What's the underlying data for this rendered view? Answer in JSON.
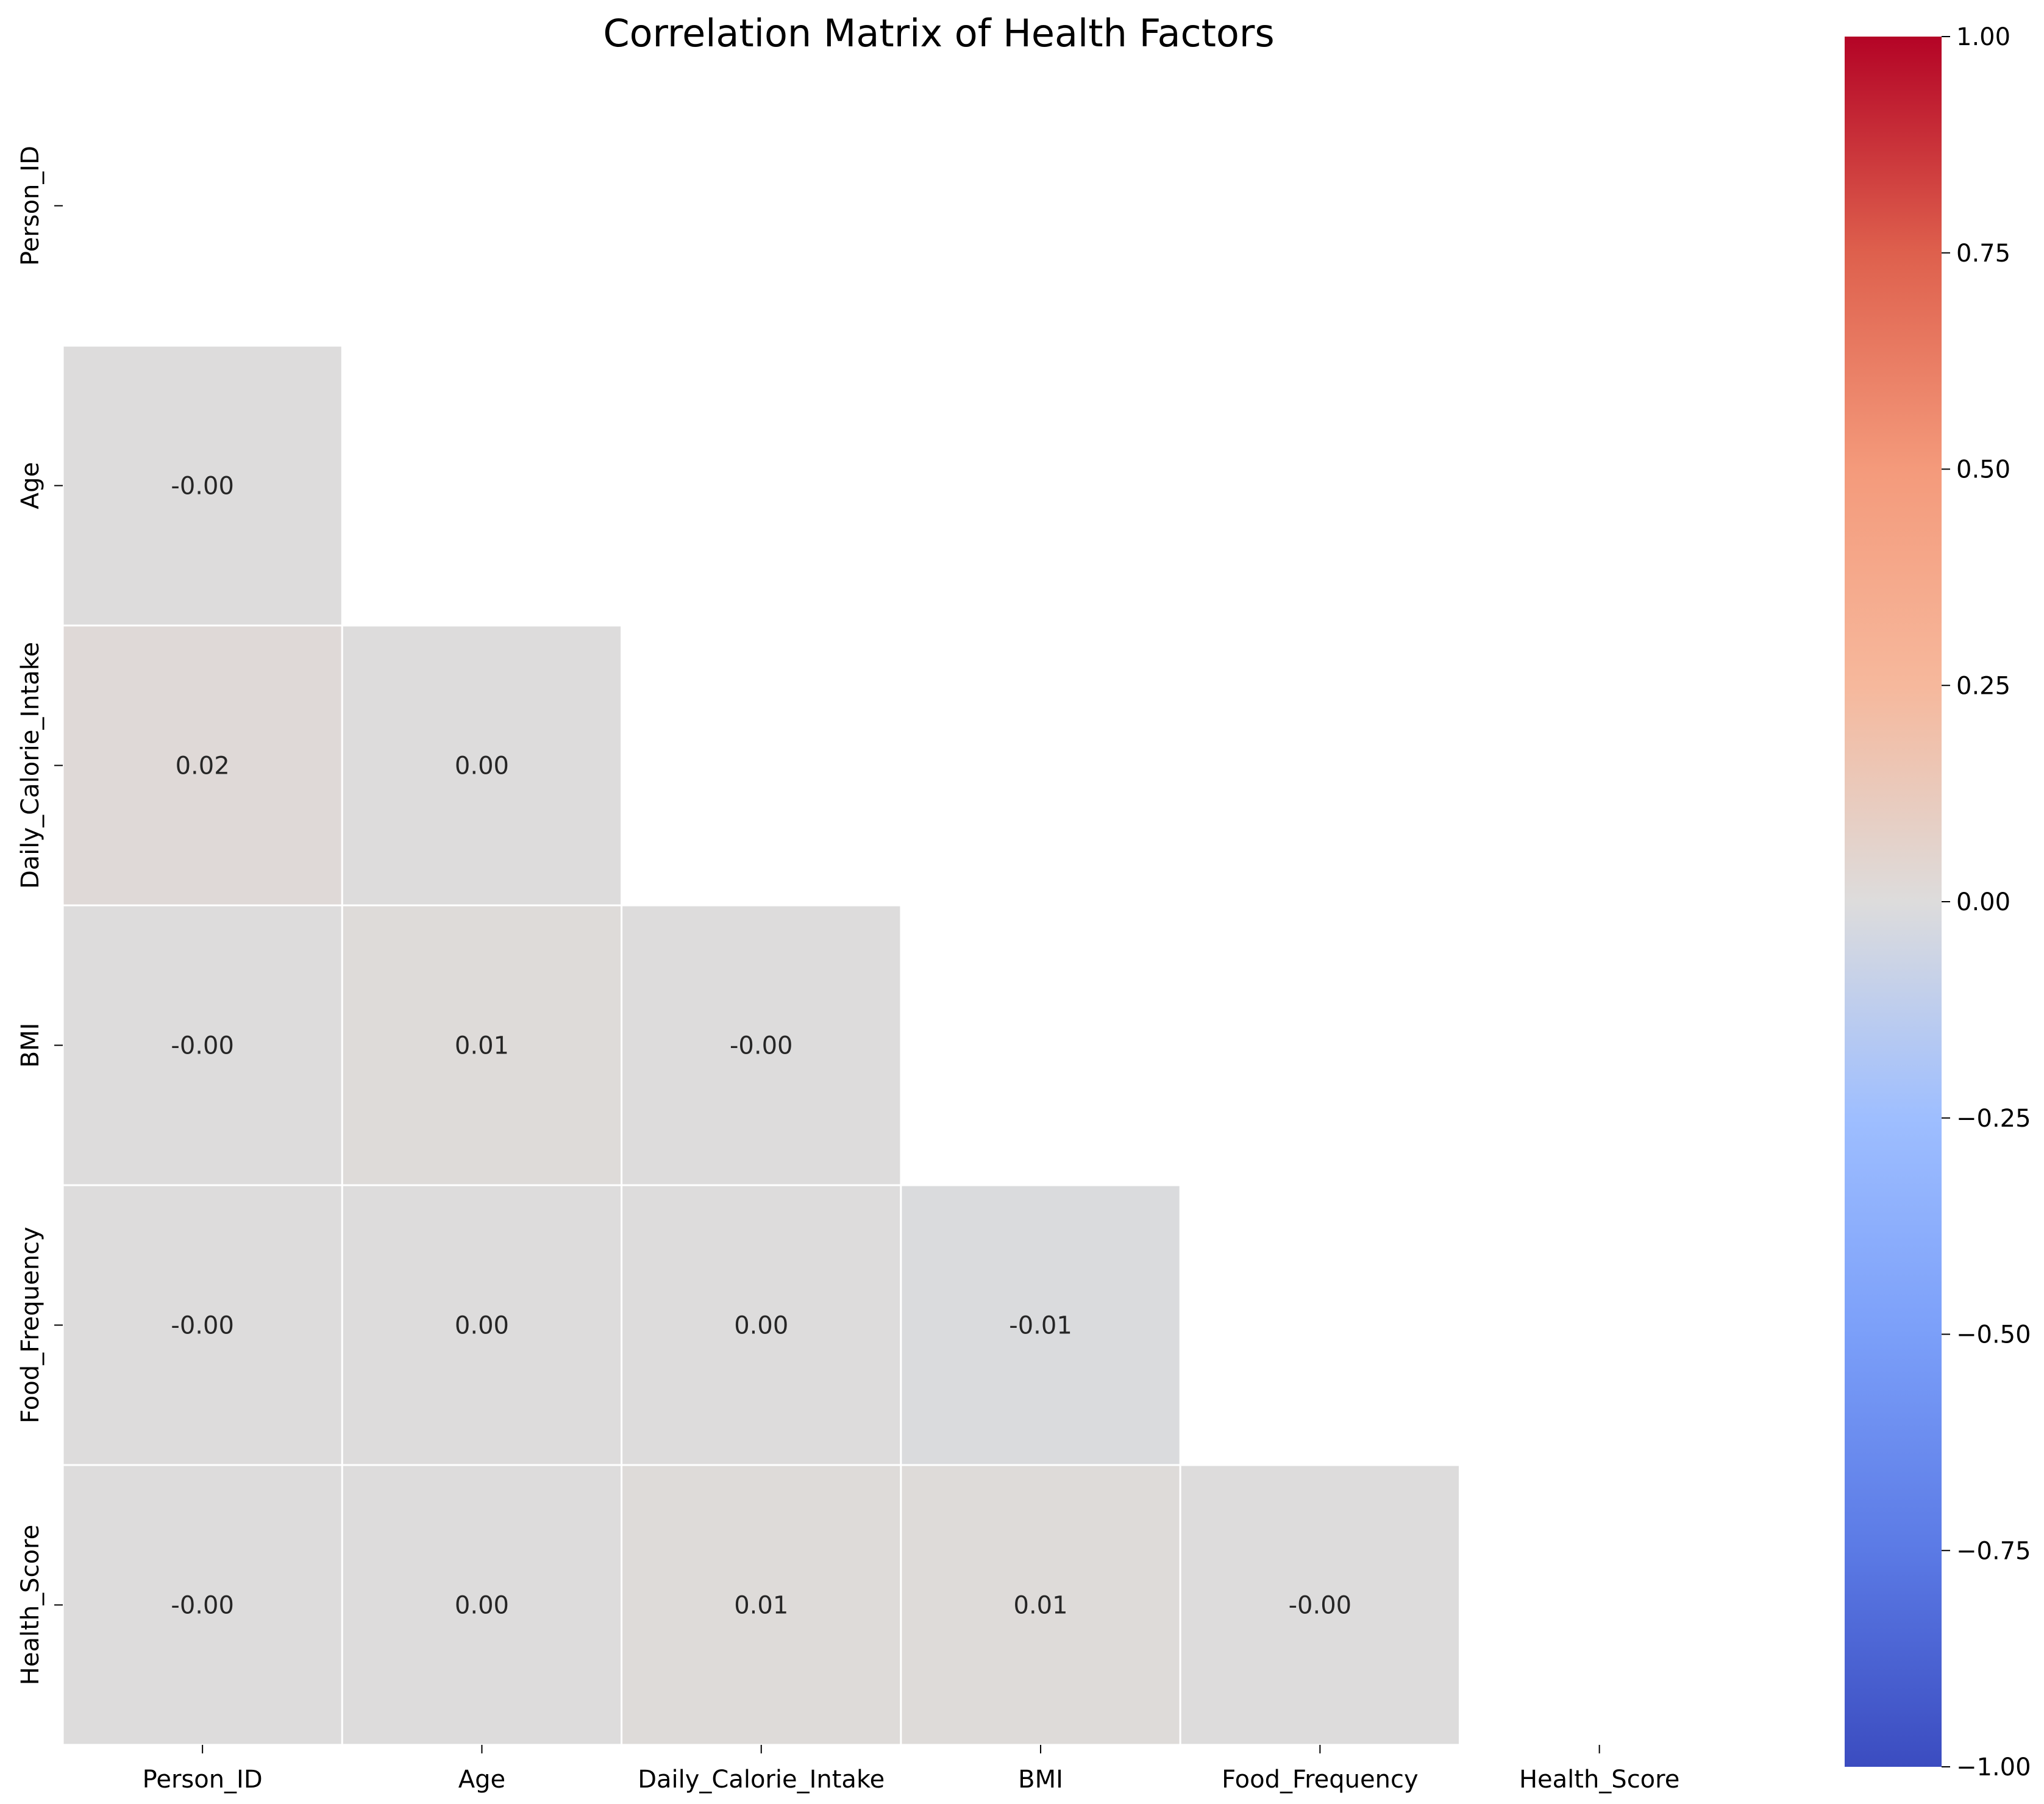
{
  "chart_data": {
    "type": "heatmap",
    "title": "Correlation Matrix of Health Factors",
    "xlabel": "",
    "ylabel": "",
    "labels": [
      "Person_ID",
      "Age",
      "Daily_Calorie_Intake",
      "BMI",
      "Food_Frequency",
      "Health_Score"
    ],
    "mask": "upper-triangle-including-diagonal",
    "cells": [
      {
        "row": "Age",
        "col": "Person_ID",
        "value": -0.001,
        "label": "-0.00"
      },
      {
        "row": "Daily_Calorie_Intake",
        "col": "Person_ID",
        "value": 0.02,
        "label": "0.02"
      },
      {
        "row": "Daily_Calorie_Intake",
        "col": "Age",
        "value": 0.001,
        "label": "0.00"
      },
      {
        "row": "BMI",
        "col": "Person_ID",
        "value": -0.001,
        "label": "-0.00"
      },
      {
        "row": "BMI",
        "col": "Age",
        "value": 0.01,
        "label": "0.01"
      },
      {
        "row": "BMI",
        "col": "Daily_Calorie_Intake",
        "value": -0.001,
        "label": "-0.00"
      },
      {
        "row": "Food_Frequency",
        "col": "Person_ID",
        "value": -0.001,
        "label": "-0.00"
      },
      {
        "row": "Food_Frequency",
        "col": "Age",
        "value": 0.001,
        "label": "0.00"
      },
      {
        "row": "Food_Frequency",
        "col": "Daily_Calorie_Intake",
        "value": 0.001,
        "label": "0.00"
      },
      {
        "row": "Food_Frequency",
        "col": "BMI",
        "value": -0.01,
        "label": "-0.01"
      },
      {
        "row": "Health_Score",
        "col": "Person_ID",
        "value": -0.001,
        "label": "-0.00"
      },
      {
        "row": "Health_Score",
        "col": "Age",
        "value": 0.001,
        "label": "0.00"
      },
      {
        "row": "Health_Score",
        "col": "Daily_Calorie_Intake",
        "value": 0.01,
        "label": "0.01"
      },
      {
        "row": "Health_Score",
        "col": "BMI",
        "value": 0.01,
        "label": "0.01"
      },
      {
        "row": "Health_Score",
        "col": "Food_Frequency",
        "value": -0.001,
        "label": "-0.00"
      }
    ],
    "colormap": "coolwarm",
    "colorbar": {
      "range": [
        -1.0,
        1.0
      ],
      "ticks": [
        1.0,
        0.75,
        0.5,
        0.25,
        0.0,
        -0.25,
        -0.5,
        -0.75,
        -1.0
      ],
      "tick_labels": [
        "1.00",
        "0.75",
        "0.50",
        "0.25",
        "0.00",
        "−0.25",
        "−0.50",
        "−0.75",
        "−1.00"
      ],
      "placement": "right"
    },
    "grid": false,
    "cell_border_color": "#ffffff"
  }
}
